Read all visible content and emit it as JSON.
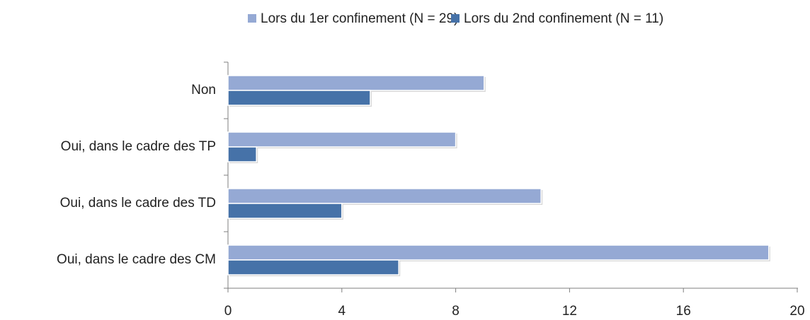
{
  "chart_data": {
    "type": "bar",
    "categories": [
      "Non",
      "Oui, dans le cadre des TP",
      "Oui, dans le cadre des TD",
      "Oui, dans le cadre des CM"
    ],
    "series": [
      {
        "name": "Lors du 1er confinement (N = 29)",
        "color": "#95a9d4",
        "values": [
          9,
          8,
          11,
          19
        ]
      },
      {
        "name": "Lors du 2nd confinement (N = 11)",
        "color": "#4672a8",
        "values": [
          5,
          1,
          4,
          6
        ]
      }
    ],
    "xlim": [
      0,
      20
    ],
    "xticks": [
      0,
      4,
      8,
      12,
      16,
      20
    ]
  }
}
